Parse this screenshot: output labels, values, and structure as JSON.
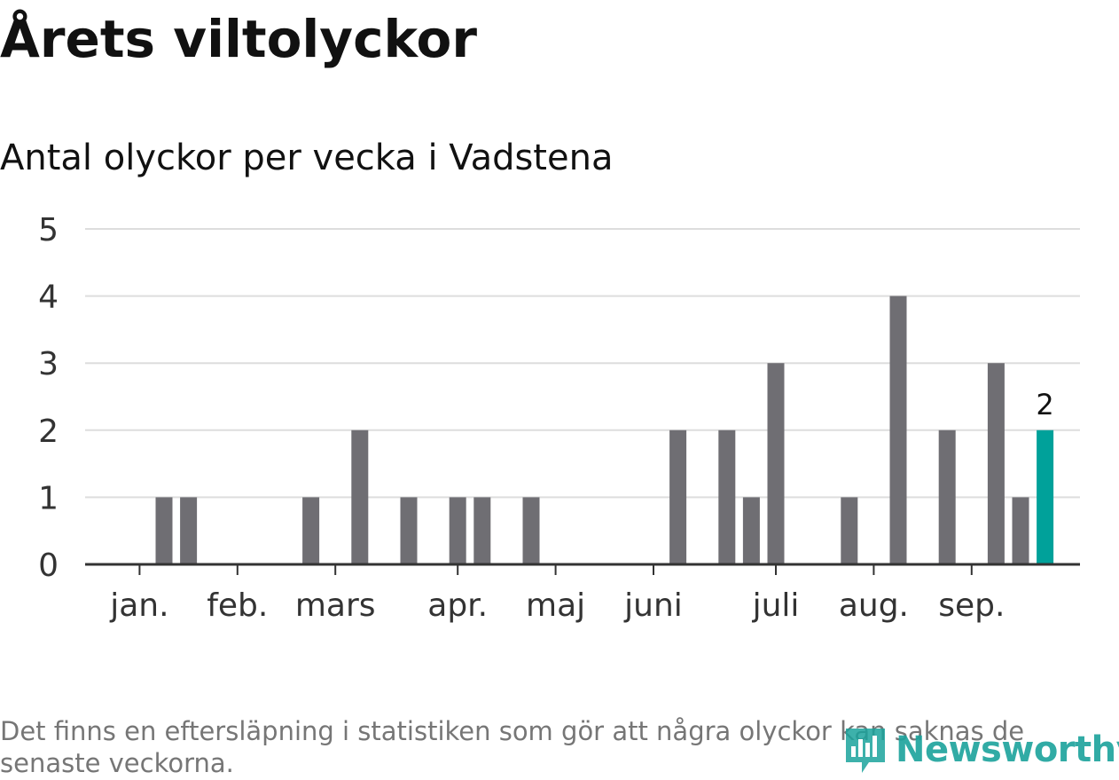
{
  "title": "Årets viltolyckor",
  "subtitle": "Antal olyckor per vecka i Vadstena",
  "note": "Det finns en eftersläpning i statistiken som gör att några olyckor kan saknas de senaste veckorna.",
  "logo": {
    "text": "Newsworthy",
    "icon": "bar-chart-logo-icon",
    "color": "#1ba39c"
  },
  "chart_data": {
    "type": "bar",
    "title": "Årets viltolyckor",
    "subtitle": "Antal olyckor per vecka i Vadstena",
    "xlabel": "",
    "ylabel": "",
    "ylim": [
      0,
      5
    ],
    "yticks": [
      0,
      1,
      2,
      3,
      4,
      5
    ],
    "grid": true,
    "x": [
      1,
      2,
      3,
      4,
      5,
      6,
      7,
      8,
      9,
      10,
      11,
      12,
      13,
      14,
      15,
      16,
      17,
      18,
      19,
      20,
      21,
      22,
      23,
      24,
      25,
      26,
      27,
      28,
      29,
      30,
      31,
      32,
      33,
      34,
      35,
      36,
      37,
      38,
      39,
      40,
      41
    ],
    "values": [
      0,
      0,
      0,
      1,
      1,
      0,
      0,
      0,
      0,
      1,
      0,
      2,
      0,
      1,
      0,
      1,
      1,
      0,
      1,
      0,
      0,
      0,
      0,
      0,
      2,
      0,
      2,
      1,
      3,
      0,
      0,
      1,
      0,
      4,
      0,
      2,
      0,
      3,
      1,
      2,
      0
    ],
    "x_ticks": [
      {
        "label": "jan.",
        "x": 3
      },
      {
        "label": "feb.",
        "x": 7
      },
      {
        "label": "mars",
        "x": 11
      },
      {
        "label": "apr.",
        "x": 16
      },
      {
        "label": "maj",
        "x": 20
      },
      {
        "label": "juni",
        "x": 24
      },
      {
        "label": "juli",
        "x": 29
      },
      {
        "label": "aug.",
        "x": 33
      },
      {
        "label": "sep.",
        "x": 37
      }
    ],
    "highlight": {
      "x": 40,
      "value": 2,
      "label": "2"
    },
    "bar_color": "#6f6e73",
    "highlight_color": "#00a19a",
    "grid_color": "#dddddd",
    "axis_color": "#333333"
  }
}
